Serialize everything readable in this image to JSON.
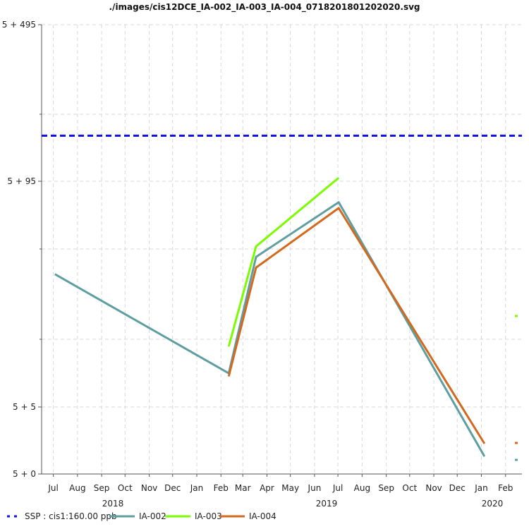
{
  "chart_data": {
    "type": "line",
    "title": "./images/cis12DCE_IA-002_IA-003_IA-004_0718201801202020.svg",
    "xlabel": "",
    "ylabel": "",
    "y_tick_labels": [
      "5 + 495",
      "5 + 95",
      "5 + 5",
      "5 + 0"
    ],
    "x_months": [
      "Jul",
      "Aug",
      "Sep",
      "Oct",
      "Nov",
      "Dec",
      "Jan",
      "Feb",
      "Mar",
      "Apr",
      "May",
      "Jun",
      "Jul",
      "Aug",
      "Sep",
      "Oct",
      "Nov",
      "Dec",
      "Jan",
      "Feb"
    ],
    "x_years": [
      "2018",
      "2019",
      "2020"
    ],
    "grid": true,
    "legend_position": "bottom",
    "threshold": {
      "name": "SSP : cis1:160.00 ppb",
      "value": 160,
      "color": "#1010e0"
    },
    "series": [
      {
        "name": "IA-002",
        "color": "#5f9ea0",
        "points": [
          {
            "x": "2018-07-18",
            "y": 30.6
          },
          {
            "x": "2019-02-26",
            "y": 8.15
          },
          {
            "x": "2019-04-02",
            "y": 38.2
          },
          {
            "x": "2019-07-17",
            "y": 76.7
          },
          {
            "x": "2020-01-20",
            "y": 0.6
          }
        ]
      },
      {
        "name": "IA-003",
        "color": "#7cfc00",
        "points": [
          {
            "x": "2019-02-26",
            "y": 11.8
          },
          {
            "x": "2019-04-02",
            "y": 43.7
          },
          {
            "x": "2019-07-17",
            "y": 103.6
          }
        ]
      },
      {
        "name": "IA-004",
        "color": "#d2691e",
        "points": [
          {
            "x": "2019-02-26",
            "y": 7.8
          },
          {
            "x": "2019-04-02",
            "y": 33.3
          },
          {
            "x": "2019-07-17",
            "y": 71.2
          },
          {
            "x": "2020-01-20",
            "y": 1.25
          }
        ]
      }
    ]
  }
}
